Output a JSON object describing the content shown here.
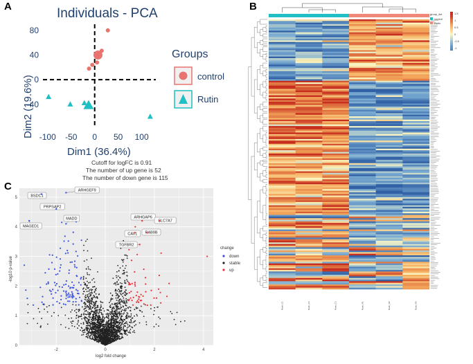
{
  "panels": {
    "a": "A",
    "b": "B",
    "c": "C"
  },
  "colors": {
    "control": "#e8736f",
    "rutin": "#1fbfc3",
    "down": "#3b4fe0",
    "stable": "#222222",
    "up": "#e8323c",
    "heat_low": "#3465a4",
    "heat_mid": "#fbf7c6",
    "heat_high": "#c8321e"
  },
  "chart_data": [
    {
      "id": "pca",
      "type": "scatter",
      "title": "Individuals - PCA",
      "xlabel": "Dim1 (36.4%)",
      "ylabel": "Dim2 (19.6%)",
      "xlim": [
        -110,
        130
      ],
      "ylim": [
        -75,
        90
      ],
      "xticks": [
        "-100",
        "-50",
        "0",
        "50",
        "100"
      ],
      "xtick_values": [
        -100,
        -50,
        0,
        50,
        100
      ],
      "yticks": [
        "80",
        "40",
        "0",
        "-40"
      ],
      "ytick_values": [
        80,
        40,
        0,
        -40
      ],
      "legend": {
        "title": "Groups",
        "entries": [
          "control",
          "Rutin"
        ]
      },
      "series": [
        {
          "name": "control",
          "marker": "circle",
          "points": [
            [
              28,
              80
            ],
            [
              15,
              47
            ],
            [
              10,
              40
            ],
            [
              5,
              28
            ],
            [
              -5,
              24
            ],
            [
              -12,
              18
            ]
          ],
          "centroid": [
            7,
            40
          ]
        },
        {
          "name": "Rutin",
          "marker": "triangle",
          "points": [
            [
              -98,
              -28
            ],
            [
              -52,
              -40
            ],
            [
              -22,
              -38
            ],
            [
              118,
              -60
            ]
          ],
          "centroid": [
            -13,
            -42
          ]
        }
      ]
    },
    {
      "id": "volcano",
      "type": "scatter",
      "cutoff_lines": [
        "Cutoff for logFC is 0.91",
        "The number of up gene is 52",
        "The number of down gene is 115"
      ],
      "xlabel": "log2 fold change",
      "ylabel": "-log10 p-value",
      "xlim": [
        -3.5,
        4.4
      ],
      "ylim": [
        0,
        5.3
      ],
      "xticks": [
        "-2",
        "0",
        "2",
        "4"
      ],
      "xtick_values": [
        -2,
        0,
        2,
        4
      ],
      "yticks": [
        "0",
        "1",
        "2",
        "3",
        "4",
        "5"
      ],
      "ytick_values": [
        0,
        1,
        2,
        3,
        4,
        5
      ],
      "legend": {
        "title": "change",
        "entries": [
          "down",
          "stable",
          "up"
        ]
      },
      "labels": [
        {
          "text": "BSDC1",
          "x": -2.6,
          "y": 5.1
        },
        {
          "text": "ARHGEF9",
          "x": -1.6,
          "y": 5.15
        },
        {
          "text": "PRPSAP2",
          "x": -2.0,
          "y": 4.6
        },
        {
          "text": "MADD",
          "x": -1.6,
          "y": 4.1
        },
        {
          "text": "MAGED1",
          "x": -3.1,
          "y": 4.2
        },
        {
          "text": "ARHGAP6",
          "x": 1.5,
          "y": 4.2
        },
        {
          "text": "SLC7A7",
          "x": 2.2,
          "y": 4.2
        },
        {
          "text": "CAV1",
          "x": 1.2,
          "y": 3.8
        },
        {
          "text": "RAB9B",
          "x": 1.7,
          "y": 3.8
        },
        {
          "text": "TGFBR2",
          "x": 1.4,
          "y": 3.4
        }
      ]
    },
    {
      "id": "heatmap",
      "type": "heatmap",
      "columns": [
        "Rutin_C1",
        "Rutin_C2",
        "Rutin_C3",
        "Rutin_R1",
        "Rutin_R2",
        "Rutin_R3"
      ],
      "groups": [
        "control",
        "control",
        "control",
        "Rutin",
        "Rutin",
        "Rutin"
      ],
      "legend": {
        "title": "group_list",
        "entries": [
          "control",
          "Rutin"
        ],
        "scale": [
          "1.5",
          "1",
          "0.5",
          "0",
          "-0.5",
          "-1"
        ]
      },
      "rows": 167
    }
  ]
}
